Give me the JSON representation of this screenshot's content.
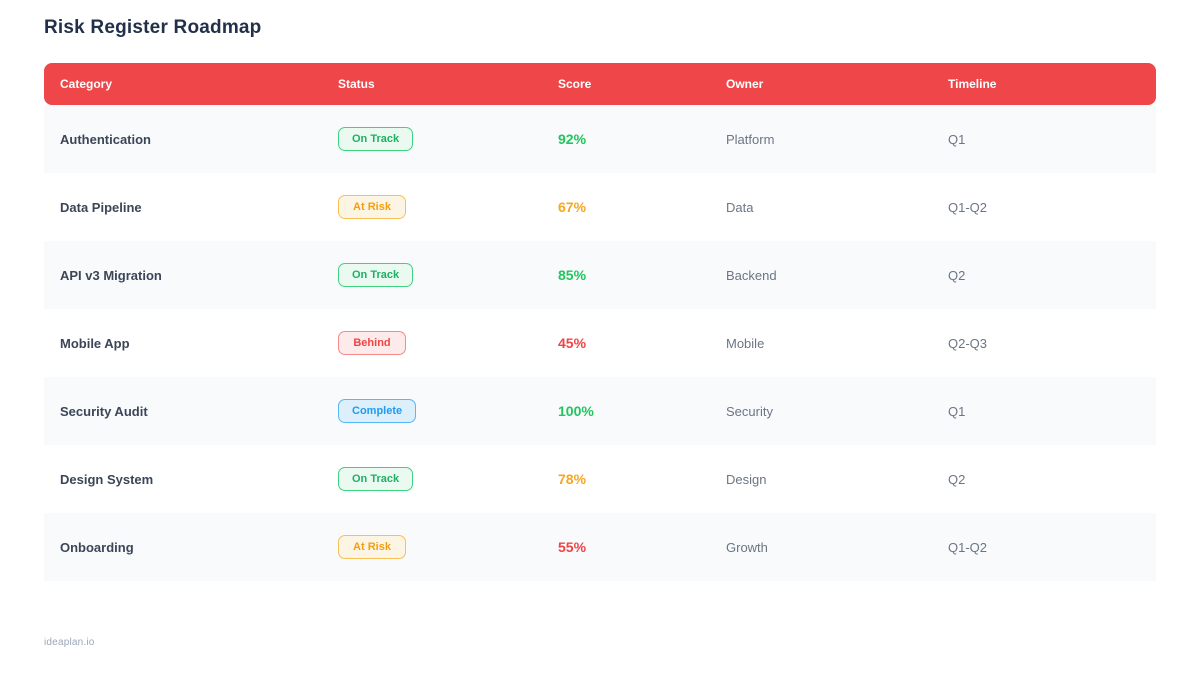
{
  "page": {
    "title": "Risk Register Roadmap",
    "footer_brand": "ideaplan.io"
  },
  "colors": {
    "header_bg": "#ee4649",
    "status_green": "#1db065",
    "status_orange": "#f59e0b",
    "status_red": "#ef4444",
    "status_blue": "#1e9bf0",
    "score_green": "#22c55e",
    "score_orange": "#f5a623",
    "score_red": "#ef4444",
    "row_stripe": "#f8fafc"
  },
  "table": {
    "columns": {
      "category": "Category",
      "status": "Status",
      "score": "Score",
      "owner": "Owner",
      "timeline": "Timeline"
    },
    "rows": [
      {
        "category": "Authentication",
        "status": "On Track",
        "status_variant": "green",
        "score": "92%",
        "score_variant": "green",
        "owner": "Platform",
        "timeline": "Q1"
      },
      {
        "category": "Data Pipeline",
        "status": "At Risk",
        "status_variant": "orange",
        "score": "67%",
        "score_variant": "orange",
        "owner": "Data",
        "timeline": "Q1-Q2"
      },
      {
        "category": "API v3 Migration",
        "status": "On Track",
        "status_variant": "green",
        "score": "85%",
        "score_variant": "green",
        "owner": "Backend",
        "timeline": "Q2"
      },
      {
        "category": "Mobile App",
        "status": "Behind",
        "status_variant": "red",
        "score": "45%",
        "score_variant": "red",
        "owner": "Mobile",
        "timeline": "Q2-Q3"
      },
      {
        "category": "Security Audit",
        "status": "Complete",
        "status_variant": "blue",
        "score": "100%",
        "score_variant": "green",
        "owner": "Security",
        "timeline": "Q1"
      },
      {
        "category": "Design System",
        "status": "On Track",
        "status_variant": "green",
        "score": "78%",
        "score_variant": "orange",
        "owner": "Design",
        "timeline": "Q2"
      },
      {
        "category": "Onboarding",
        "status": "At Risk",
        "status_variant": "orange",
        "score": "55%",
        "score_variant": "red",
        "owner": "Growth",
        "timeline": "Q1-Q2"
      }
    ]
  }
}
